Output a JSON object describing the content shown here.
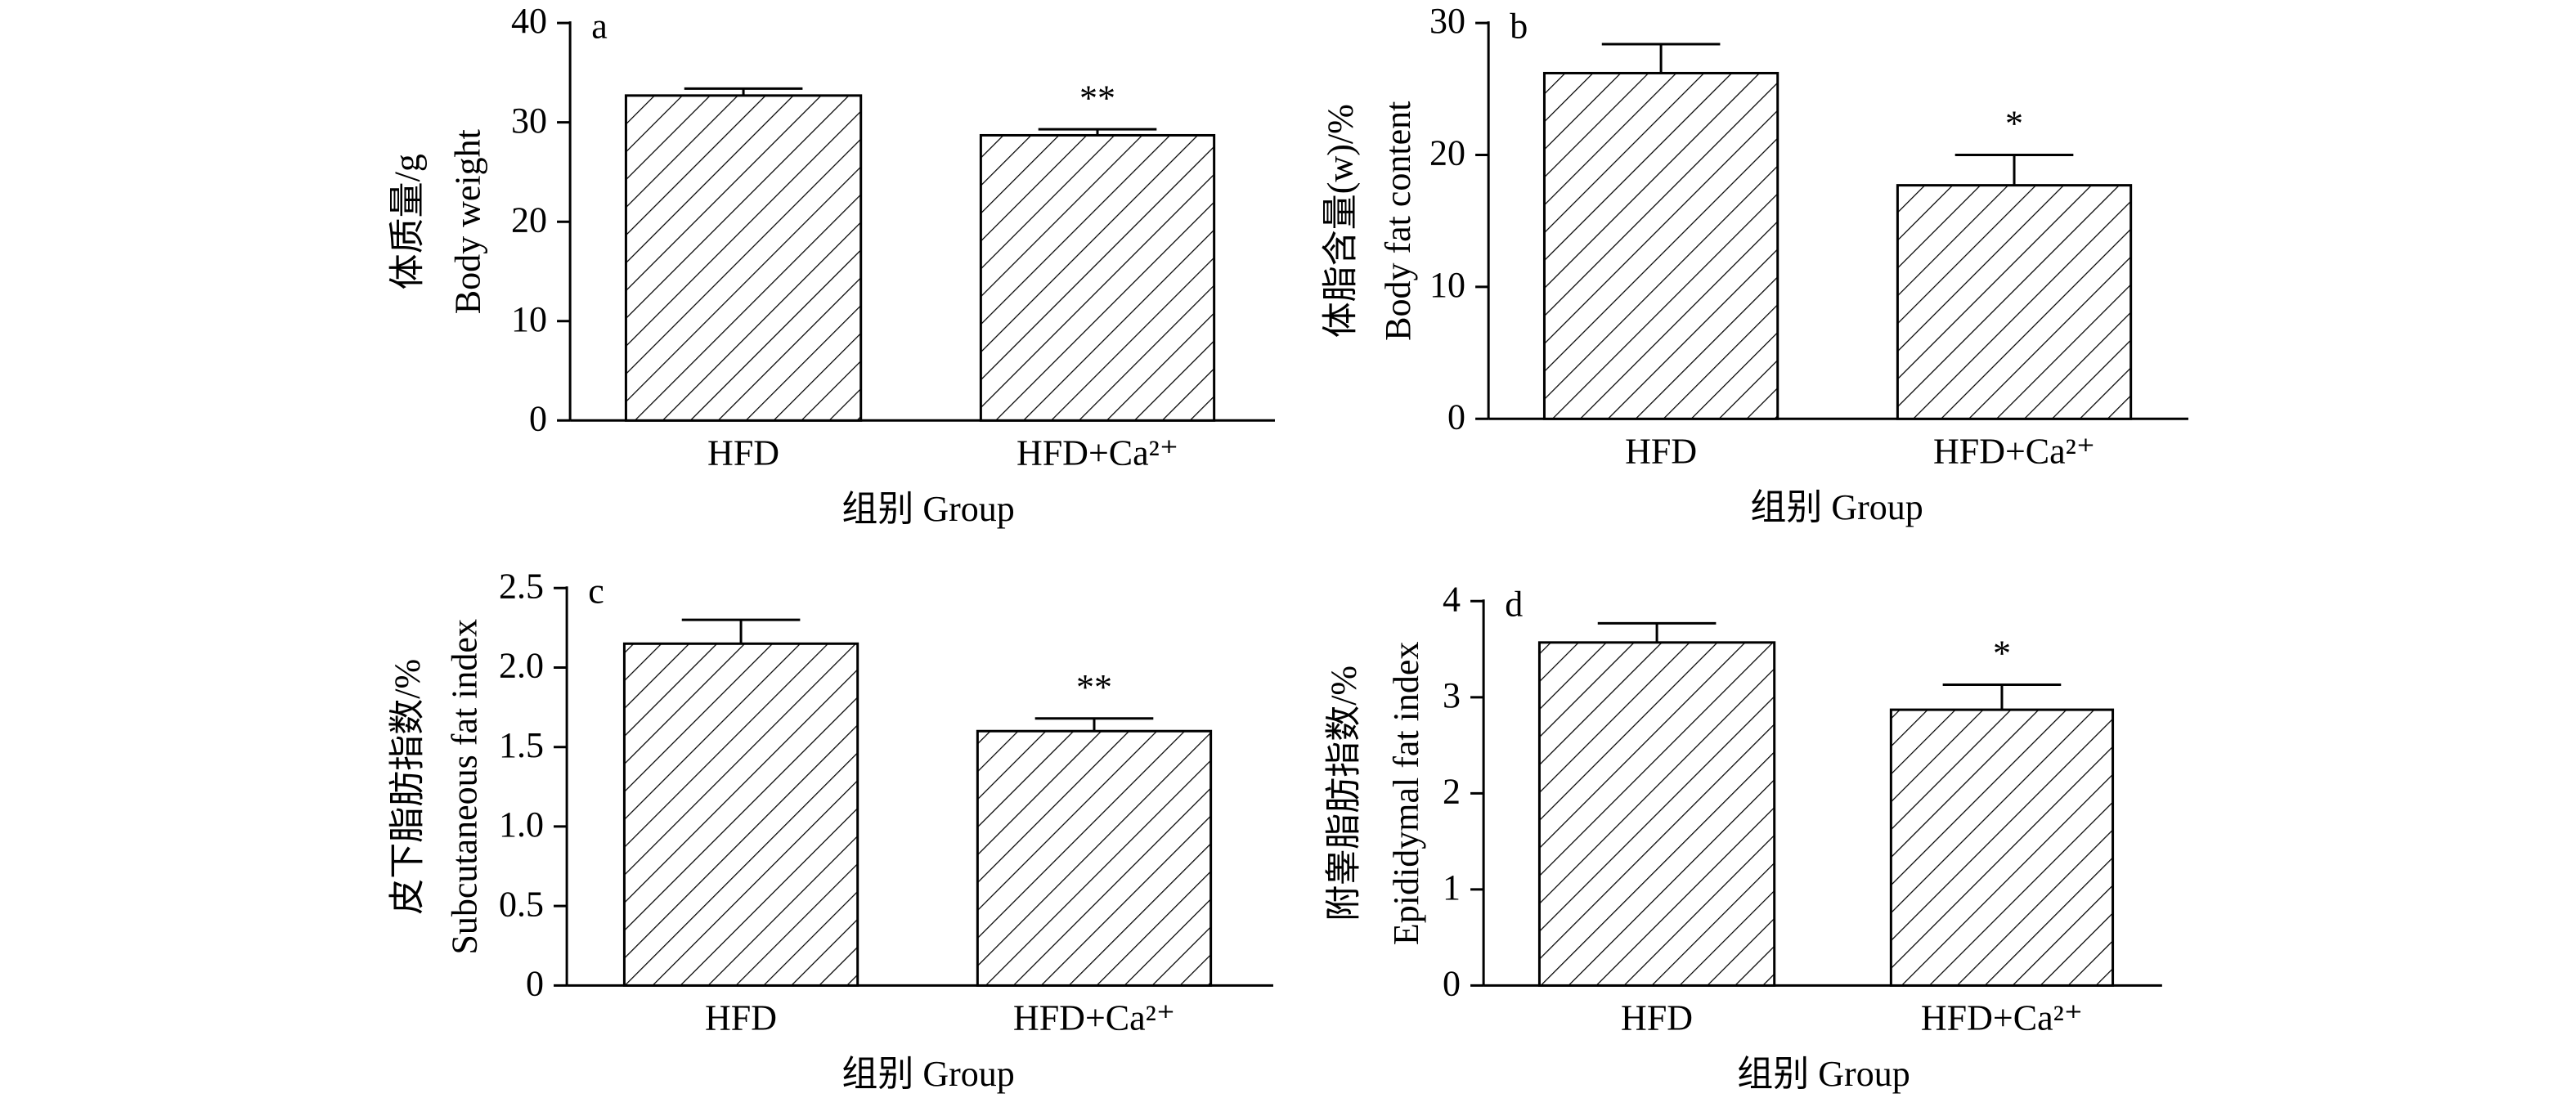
{
  "chart_data": [
    {
      "type": "bar",
      "panel": "a",
      "ylabel": [
        "体质量/g",
        "Body weight"
      ],
      "xlabel": "组别 Group",
      "categories": [
        "HFD",
        "HFD+Ca²⁺"
      ],
      "values": [
        32.7,
        28.7
      ],
      "errors": [
        0.7,
        0.6
      ],
      "annotations": [
        null,
        "**"
      ],
      "ylim": [
        0,
        40
      ],
      "yticks": [
        0,
        10,
        20,
        30,
        40
      ],
      "color": "#000000",
      "hatch": "/"
    },
    {
      "type": "bar",
      "panel": "b",
      "ylabel": [
        "体脂含量(w)/%",
        "Body fat content"
      ],
      "xlabel": "组别 Group",
      "categories": [
        "HFD",
        "HFD+Ca²⁺"
      ],
      "values": [
        26.2,
        17.7
      ],
      "errors": [
        2.2,
        2.3
      ],
      "annotations": [
        null,
        "*"
      ],
      "ylim": [
        0,
        30
      ],
      "yticks": [
        0,
        10,
        20,
        30
      ],
      "color": "#000000",
      "hatch": "/"
    },
    {
      "type": "bar",
      "panel": "c",
      "ylabel": [
        "皮下脂肪指数/%",
        "Subcutaneous fat index"
      ],
      "xlabel": "组别 Group",
      "categories": [
        "HFD",
        "HFD+Ca²⁺"
      ],
      "values": [
        2.15,
        1.6
      ],
      "errors": [
        0.15,
        0.08
      ],
      "annotations": [
        null,
        "**"
      ],
      "ylim": [
        0,
        2.5
      ],
      "yticks": [
        0,
        0.5,
        {
          "value": 1,
          "label": "1.0"
        },
        1.5,
        {
          "value": 2,
          "label": "2.0"
        },
        2.5
      ],
      "color": "#000000",
      "hatch": "/"
    },
    {
      "type": "bar",
      "panel": "d",
      "ylabel": [
        "附睾脂肪指数/%",
        "Epididymal fat index"
      ],
      "xlabel": "组别 Group",
      "categories": [
        "HFD",
        "HFD+Ca²⁺"
      ],
      "values": [
        3.57,
        2.87
      ],
      "errors": [
        0.2,
        0.26
      ],
      "annotations": [
        null,
        "*"
      ],
      "ylim": [
        0,
        4
      ],
      "yticks": [
        0,
        1,
        2,
        3,
        4
      ],
      "color": "#000000",
      "hatch": "/"
    }
  ]
}
